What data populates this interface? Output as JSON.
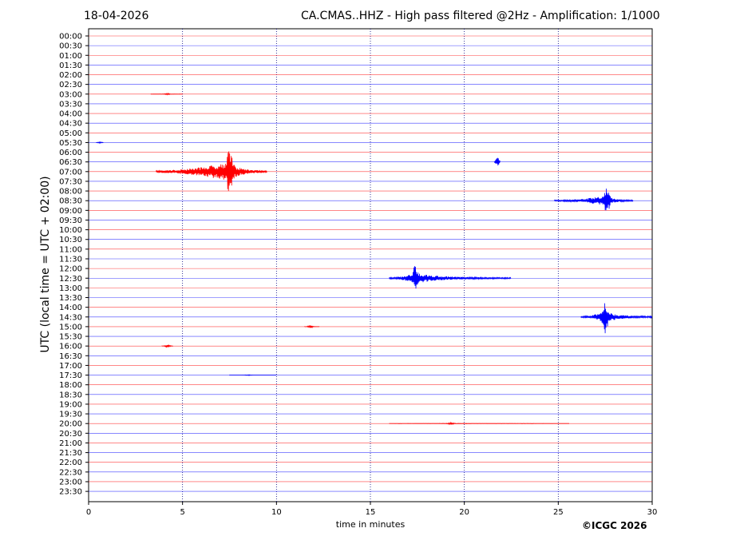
{
  "header": {
    "date": "18-04-2026",
    "title": "CA.CMAS..HHZ - High pass filtered @2Hz - Amplification: 1/1000"
  },
  "footer": {
    "credit": "©ICGC 2026"
  },
  "chart_data": {
    "type": "line",
    "title": "CA.CMAS..HHZ - High pass filtered @2Hz - Amplification: 1/1000",
    "xlabel": "time in minutes",
    "ylabel": "UTC (local time = UTC + 02:00)",
    "xlim": [
      0,
      30
    ],
    "x_ticks": [
      0,
      5,
      10,
      15,
      20,
      25,
      30
    ],
    "row_labels": [
      "00:00",
      "00:30",
      "01:00",
      "01:30",
      "02:00",
      "02:30",
      "03:00",
      "03:30",
      "04:00",
      "04:30",
      "05:00",
      "05:30",
      "06:00",
      "06:30",
      "07:00",
      "07:30",
      "08:00",
      "08:30",
      "09:00",
      "09:30",
      "10:00",
      "10:30",
      "11:00",
      "11:30",
      "12:00",
      "12:30",
      "13:00",
      "13:30",
      "14:00",
      "14:30",
      "15:00",
      "15:30",
      "16:00",
      "16:30",
      "17:00",
      "17:30",
      "18:00",
      "18:30",
      "19:00",
      "19:30",
      "20:00",
      "20:30",
      "21:00",
      "21:30",
      "22:00",
      "22:30",
      "23:00",
      "23:30"
    ],
    "trace_colors": [
      "#ff0000",
      "#0000ff"
    ],
    "grid": "vertical dotted at x ticks",
    "events": [
      {
        "row": "03:00",
        "start": 3.3,
        "end": 5.0,
        "peak": 4.2,
        "amp": 0.08
      },
      {
        "row": "05:30",
        "start": 0.4,
        "end": 0.8,
        "peak": 0.6,
        "amp": 0.08
      },
      {
        "row": "06:30",
        "start": 21.6,
        "end": 21.9,
        "peak": 21.75,
        "amp": 0.5
      },
      {
        "row": "07:00",
        "start": 3.6,
        "end": 9.5,
        "peak": 7.5,
        "amp": 3.0
      },
      {
        "row": "08:30",
        "start": 24.8,
        "end": 29.0,
        "peak": 27.6,
        "amp": 1.5
      },
      {
        "row": "12:30",
        "start": 16.0,
        "end": 22.5,
        "peak": 17.4,
        "amp": 1.6
      },
      {
        "row": "14:30",
        "start": 26.2,
        "end": 30.0,
        "peak": 27.5,
        "amp": 1.8
      },
      {
        "row": "15:00",
        "start": 11.5,
        "end": 12.3,
        "peak": 11.8,
        "amp": 0.15
      },
      {
        "row": "16:00",
        "start": 3.9,
        "end": 4.5,
        "peak": 4.2,
        "amp": 0.15
      },
      {
        "row": "17:30",
        "start": 7.5,
        "end": 10.0,
        "peak": 8.5,
        "amp": 0.05
      },
      {
        "row": "20:00",
        "start": 16.0,
        "end": 25.6,
        "peak": 19.3,
        "amp": 0.1
      }
    ]
  }
}
